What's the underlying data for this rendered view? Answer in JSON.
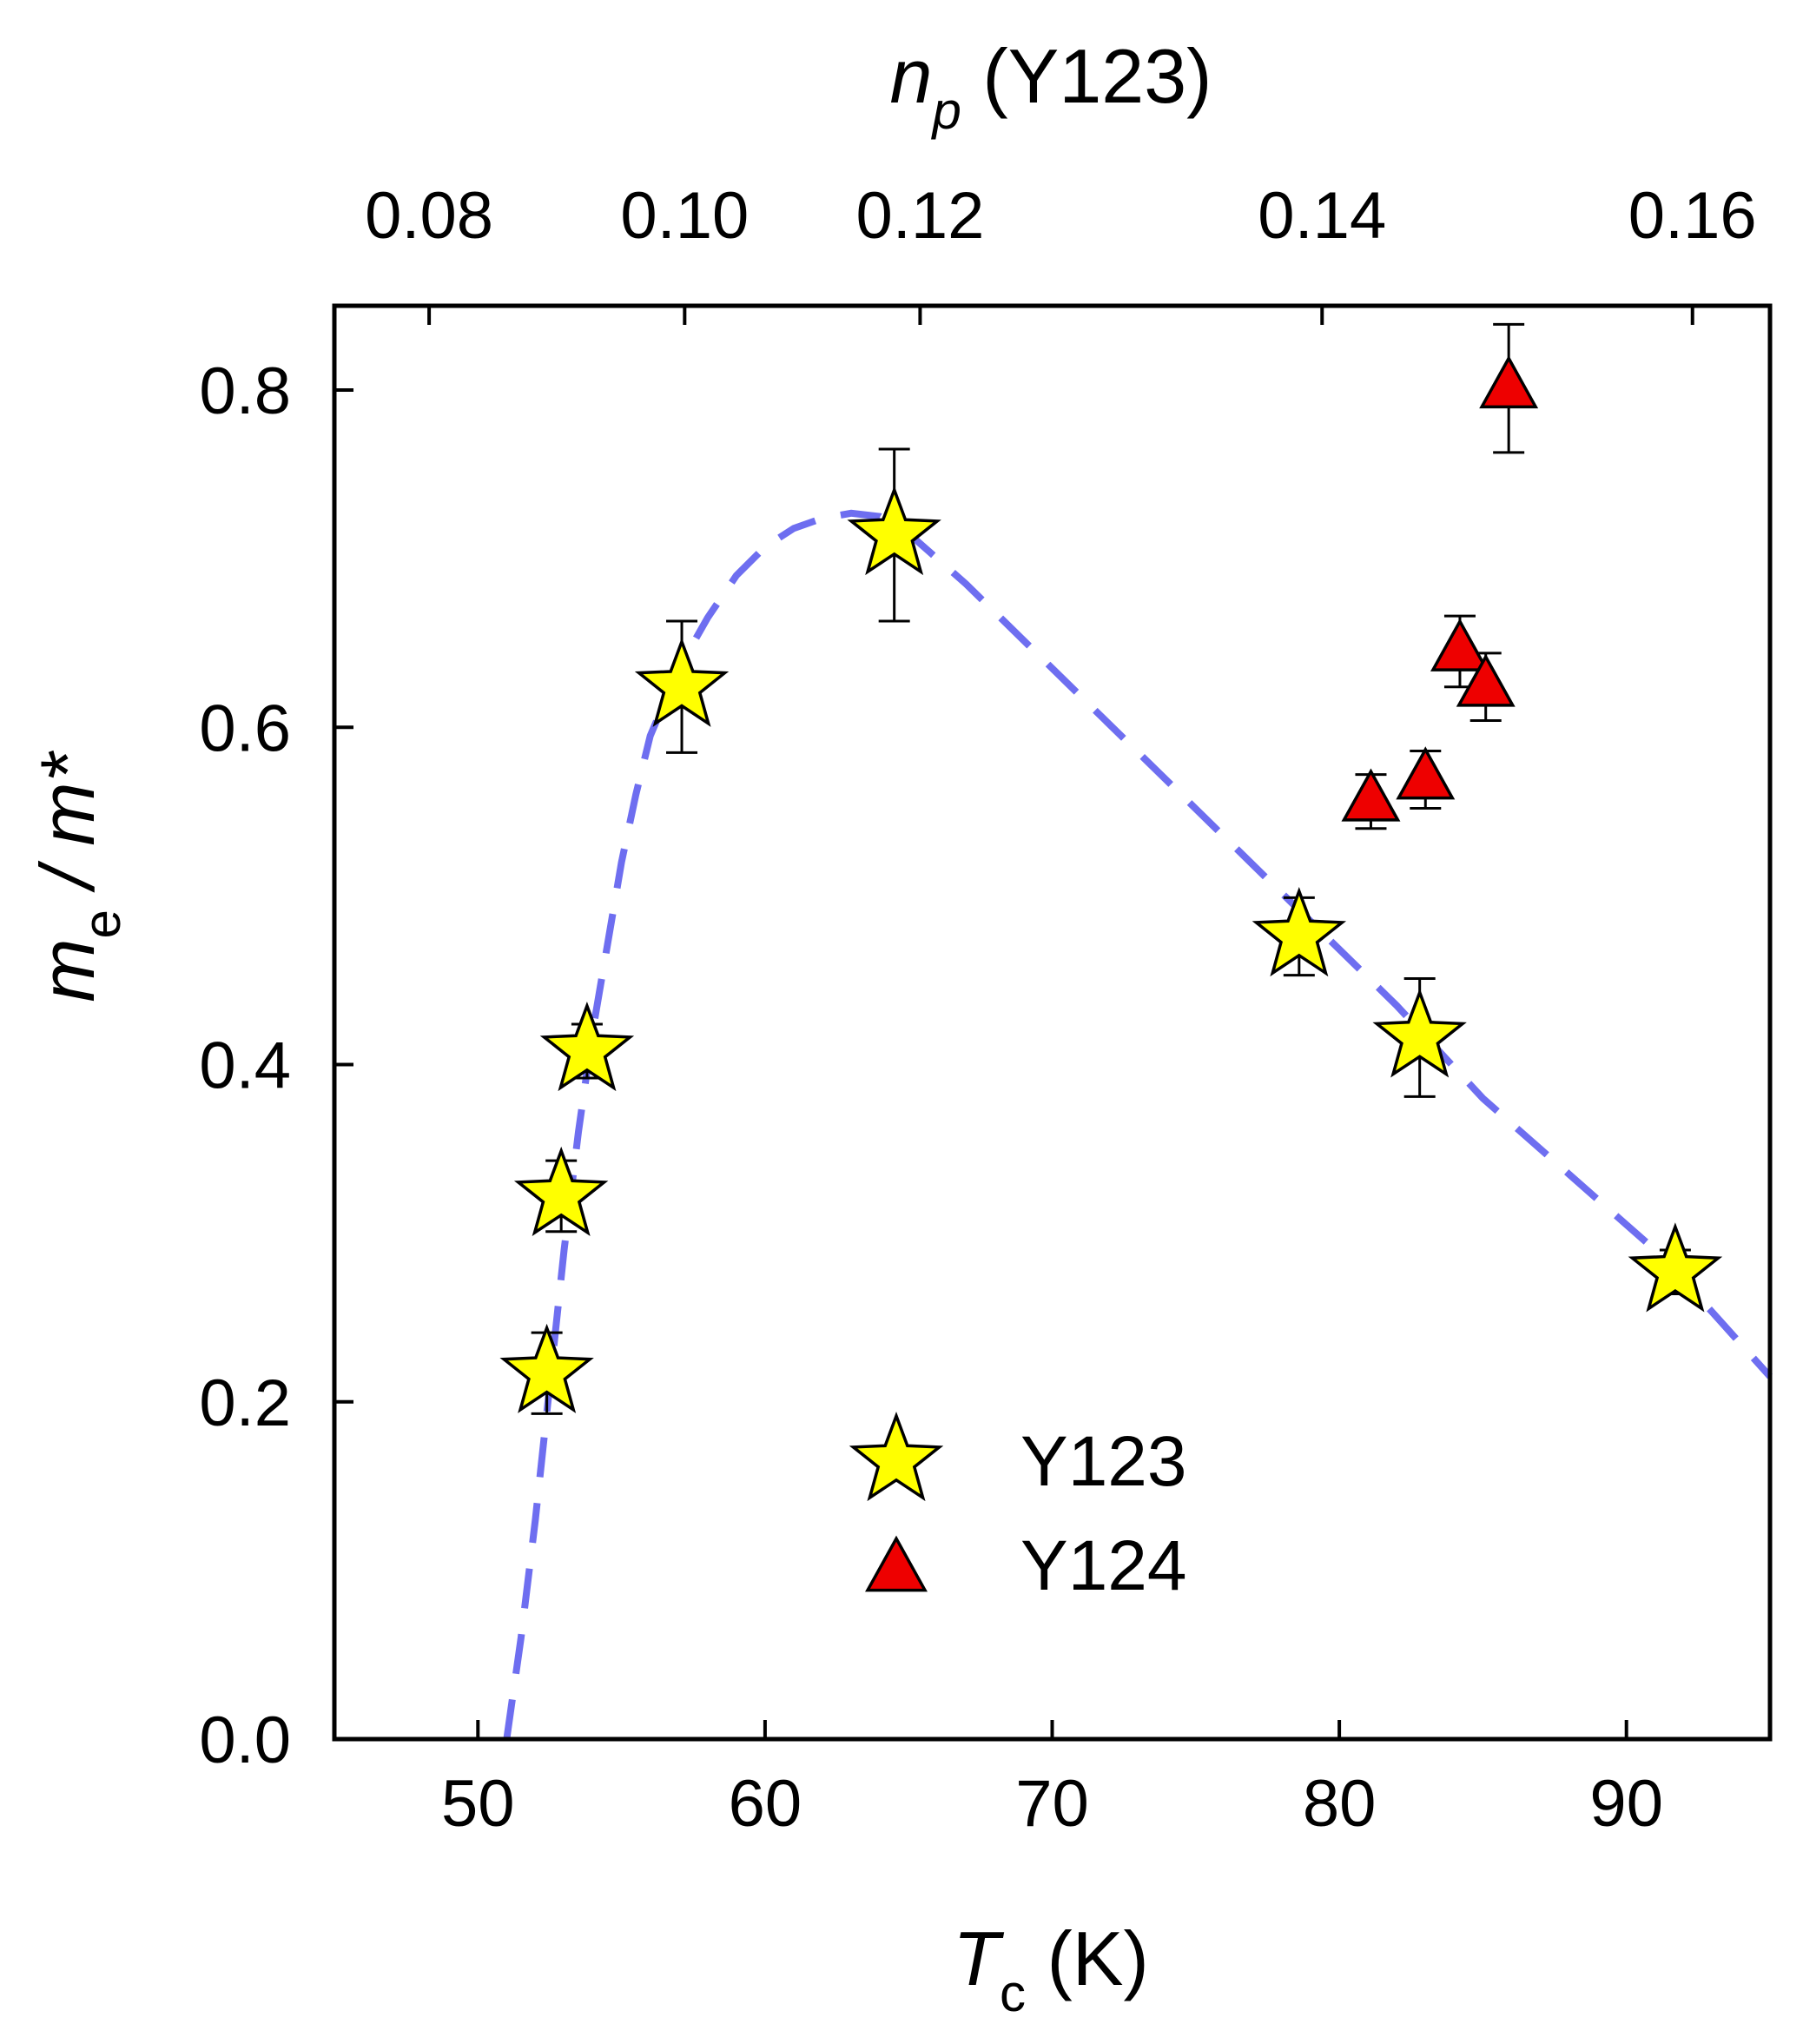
{
  "chart_data": {
    "type": "scatter",
    "title": "",
    "xlabel": {
      "main": "T",
      "sub": "c",
      "unit": " (K)"
    },
    "ylabel": {
      "main": "m",
      "sub": "e",
      "rest": " / m*"
    },
    "top_xlabel": {
      "main": "n",
      "sub": "p",
      "rest": " (Y123)"
    },
    "xlim": [
      45,
      95
    ],
    "ylim": [
      0,
      0.85
    ],
    "xticks": [
      50,
      60,
      70,
      80,
      90
    ],
    "xtick_labels": [
      "50",
      "60",
      "70",
      "80",
      "90"
    ],
    "yticks": [
      0.0,
      0.2,
      0.4,
      0.6,
      0.8
    ],
    "ytick_labels": [
      "0.0",
      "0.2",
      "0.4",
      "0.6",
      "0.8"
    ],
    "top_ticks": [
      {
        "tc": 48.3,
        "label": "0.08"
      },
      {
        "tc": 57.2,
        "label": "0.10"
      },
      {
        "tc": 65.4,
        "label": "0.12"
      },
      {
        "tc": 79.4,
        "label": "0.14"
      },
      {
        "tc": 92.3,
        "label": "0.16"
      }
    ],
    "series": [
      {
        "name": "Y123",
        "marker": "star",
        "color": "#ffff00",
        "points": [
          {
            "x": 52.4,
            "y": 0.217,
            "err": 0.024
          },
          {
            "x": 52.9,
            "y": 0.322,
            "err": 0.021
          },
          {
            "x": 53.8,
            "y": 0.408,
            "err": 0.016
          },
          {
            "x": 57.1,
            "y": 0.624,
            "err": 0.039
          },
          {
            "x": 64.5,
            "y": 0.714,
            "err": 0.051
          },
          {
            "x": 78.6,
            "y": 0.476,
            "err": 0.023
          },
          {
            "x": 82.8,
            "y": 0.416,
            "err": 0.035
          },
          {
            "x": 91.7,
            "y": 0.277,
            "err": 0.013
          }
        ]
      },
      {
        "name": "Y124",
        "marker": "triangle",
        "color": "#ee0000",
        "points": [
          {
            "x": 81.1,
            "y": 0.556,
            "err": 0.016
          },
          {
            "x": 83.0,
            "y": 0.569,
            "err": 0.017
          },
          {
            "x": 84.2,
            "y": 0.645,
            "err": 0.021
          },
          {
            "x": 85.1,
            "y": 0.624,
            "err": 0.02
          },
          {
            "x": 85.9,
            "y": 0.801,
            "err": 0.038
          }
        ]
      }
    ],
    "fit_curve": {
      "style": "dashed",
      "color": "#6e6ef0",
      "points": [
        [
          51.0,
          0.0
        ],
        [
          51.5,
          0.06
        ],
        [
          52.0,
          0.13
        ],
        [
          52.5,
          0.21
        ],
        [
          53.0,
          0.29
        ],
        [
          53.5,
          0.36
        ],
        [
          54.0,
          0.42
        ],
        [
          54.5,
          0.47
        ],
        [
          55.0,
          0.52
        ],
        [
          55.5,
          0.56
        ],
        [
          56.0,
          0.595
        ],
        [
          57.0,
          0.635
        ],
        [
          58.0,
          0.665
        ],
        [
          59.0,
          0.69
        ],
        [
          60.0,
          0.707
        ],
        [
          61.0,
          0.718
        ],
        [
          62.0,
          0.724
        ],
        [
          63.0,
          0.727
        ],
        [
          64.0,
          0.725
        ],
        [
          65.0,
          0.715
        ],
        [
          67.0,
          0.685
        ],
        [
          70.0,
          0.635
        ],
        [
          73.0,
          0.585
        ],
        [
          76.0,
          0.535
        ],
        [
          79.0,
          0.485
        ],
        [
          82.0,
          0.435
        ],
        [
          85.0,
          0.38
        ],
        [
          88.0,
          0.335
        ],
        [
          91.0,
          0.29
        ],
        [
          93.0,
          0.253
        ],
        [
          95.0,
          0.215
        ]
      ]
    },
    "legend": {
      "placement": "lower-center"
    }
  }
}
